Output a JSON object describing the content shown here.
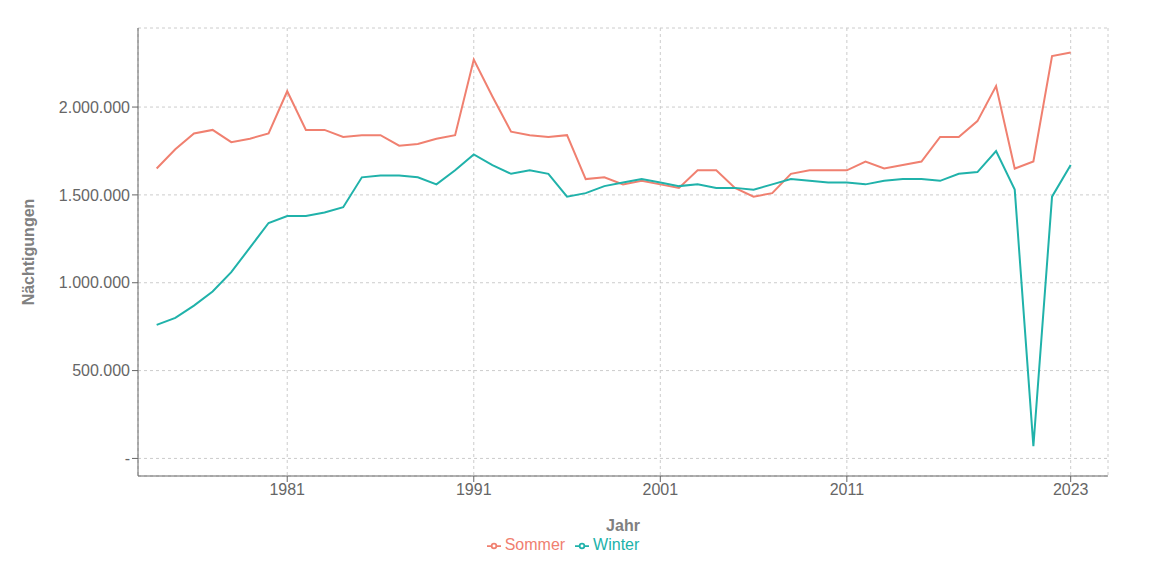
{
  "chart_data": {
    "type": "line",
    "xlabel": "Jahr",
    "ylabel": "Nächtigungen",
    "x": [
      1974,
      1975,
      1976,
      1977,
      1978,
      1979,
      1980,
      1981,
      1982,
      1983,
      1984,
      1985,
      1986,
      1987,
      1988,
      1989,
      1990,
      1991,
      1992,
      1993,
      1994,
      1995,
      1996,
      1997,
      1998,
      1999,
      2000,
      2001,
      2002,
      2003,
      2004,
      2005,
      2006,
      2007,
      2008,
      2009,
      2010,
      2011,
      2012,
      2013,
      2014,
      2015,
      2016,
      2017,
      2018,
      2019,
      2020,
      2021,
      2022,
      2023
    ],
    "series": [
      {
        "name": "Sommer",
        "color": "#f08070",
        "values": [
          1650000,
          1760000,
          1850000,
          1870000,
          1800000,
          1820000,
          1850000,
          2090000,
          1870000,
          1870000,
          1830000,
          1840000,
          1840000,
          1780000,
          1790000,
          1820000,
          1840000,
          2270000,
          2060000,
          1860000,
          1840000,
          1830000,
          1840000,
          1590000,
          1600000,
          1560000,
          1580000,
          1560000,
          1540000,
          1640000,
          1640000,
          1540000,
          1490000,
          1510000,
          1620000,
          1640000,
          1640000,
          1640000,
          1690000,
          1650000,
          1670000,
          1690000,
          1830000,
          1830000,
          1920000,
          2120000,
          1650000,
          1690000,
          2290000,
          2310000
        ]
      },
      {
        "name": "Winter",
        "color": "#20b2aa",
        "values": [
          760000,
          800000,
          870000,
          950000,
          1060000,
          1200000,
          1340000,
          1380000,
          1380000,
          1400000,
          1430000,
          1600000,
          1610000,
          1610000,
          1600000,
          1560000,
          1640000,
          1730000,
          1670000,
          1620000,
          1640000,
          1620000,
          1490000,
          1510000,
          1550000,
          1570000,
          1590000,
          1570000,
          1550000,
          1560000,
          1540000,
          1540000,
          1530000,
          1560000,
          1590000,
          1580000,
          1570000,
          1570000,
          1560000,
          1580000,
          1590000,
          1590000,
          1580000,
          1620000,
          1630000,
          1750000,
          1530000,
          70000,
          1490000,
          1670000
        ]
      }
    ],
    "xlim": [
      1973,
      2025
    ],
    "xticks": [
      1981,
      1991,
      2001,
      2011,
      2023
    ],
    "ylim": [
      -100000,
      2450000
    ],
    "yticks": [
      {
        "value": 0,
        "label": "-"
      },
      {
        "value": 500000,
        "label": "500.000"
      },
      {
        "value": 1000000,
        "label": "1.000.000"
      },
      {
        "value": 1500000,
        "label": "1.500.000"
      },
      {
        "value": 2000000,
        "label": "2.000.000"
      }
    ],
    "grid": true,
    "legend": "bottom"
  }
}
